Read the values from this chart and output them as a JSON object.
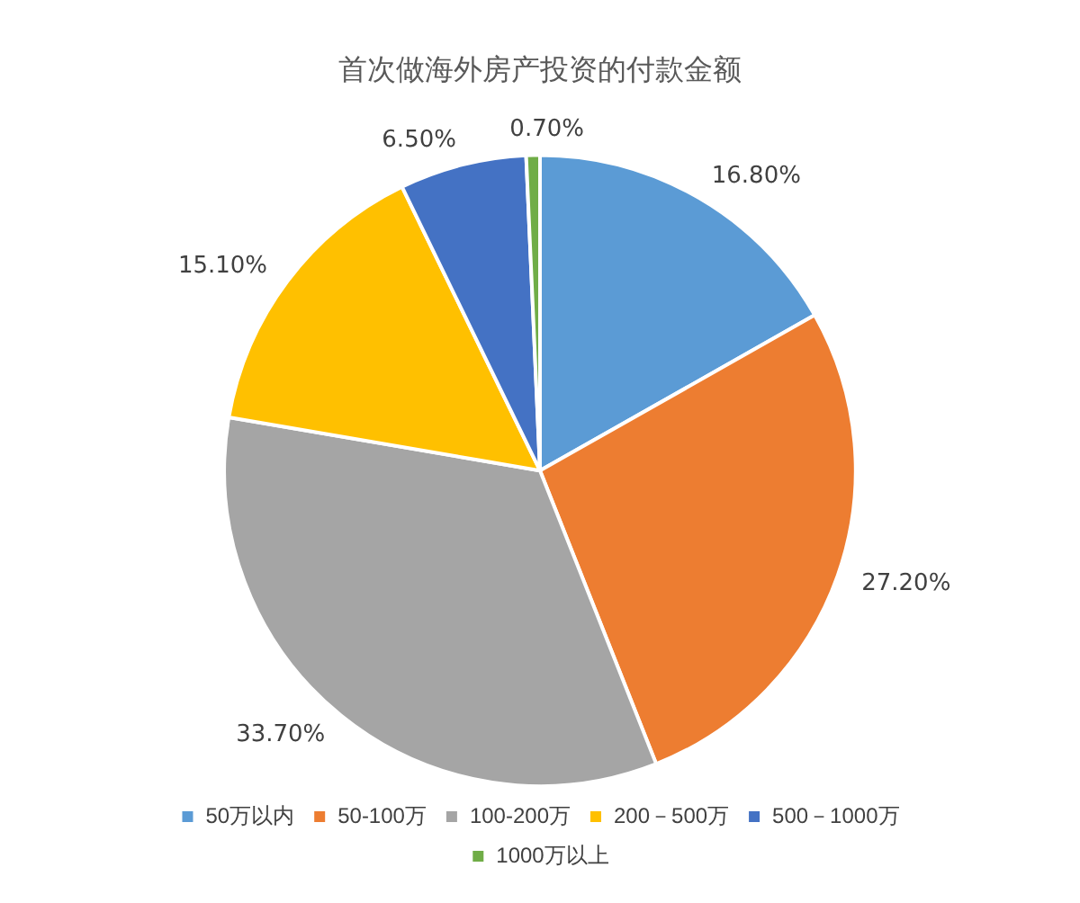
{
  "chart_data": {
    "type": "pie",
    "title": "首次做海外房产投资的付款金额",
    "categories": [
      "50万以内",
      "50-100万",
      "100-200万",
      "200－500万",
      "500－1000万",
      "1000万以上"
    ],
    "values": [
      16.8,
      27.2,
      33.7,
      15.1,
      6.5,
      0.7
    ],
    "colors": [
      "#5b9bd5",
      "#ed7d31",
      "#a5a5a5",
      "#ffc000",
      "#4472c4",
      "#70ad47"
    ],
    "value_labels": [
      "16.80%",
      "27.20%",
      "33.70%",
      "15.10%",
      "6.50%",
      "0.70%"
    ],
    "legend": "bottom"
  }
}
